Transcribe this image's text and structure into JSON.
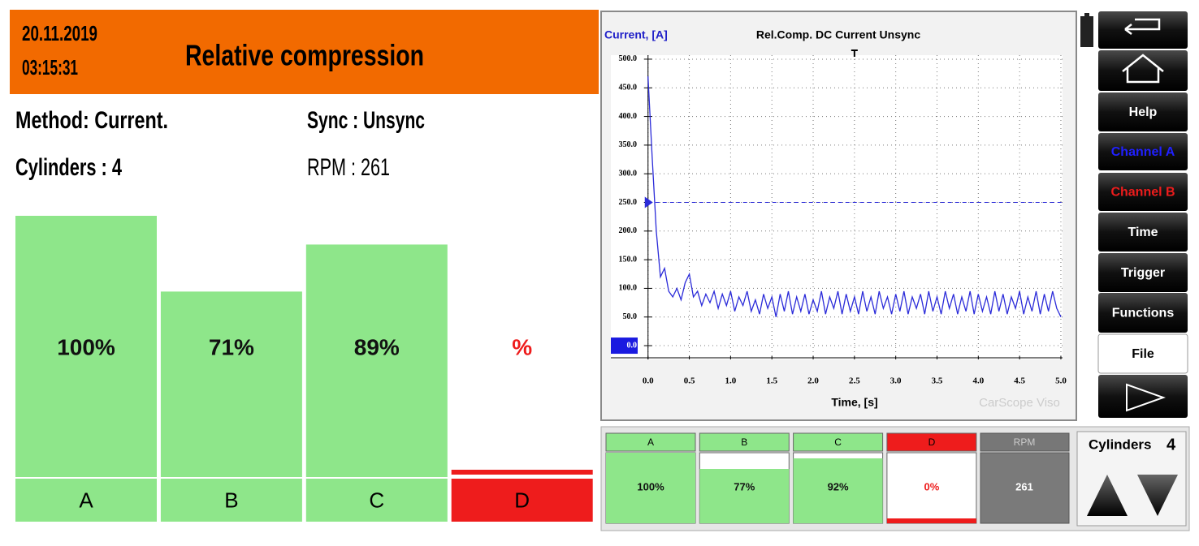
{
  "header": {
    "date": "20.11.2019",
    "time": "03:15:31",
    "title": "Relative compression"
  },
  "info": {
    "method": "Method: Current.",
    "sync": "Sync : Unsync",
    "cylinders": "Cylinders : 4",
    "rpm": "RPM : 261"
  },
  "chart_data": [
    {
      "type": "bar",
      "categories": [
        "A",
        "B",
        "C",
        "D"
      ],
      "values": [
        100,
        71,
        89,
        null
      ],
      "value_labels": [
        "100%",
        "71%",
        "89%",
        "%"
      ],
      "colors": [
        "#8ee68a",
        "#8ee68a",
        "#8ee68a",
        "#ee1c1c"
      ],
      "value_label_colors": [
        "#111111",
        "#111111",
        "#111111",
        "#ee1c1c"
      ],
      "ylim": [
        0,
        100
      ]
    },
    {
      "type": "line",
      "title": "Rel.Comp. DC Current Unsync",
      "y_label": "Current, [A]",
      "x_label": "Time, [s]",
      "watermark": "CarScope Viso",
      "x": [
        0,
        0.05,
        0.1,
        0.15,
        0.2,
        0.25,
        0.3,
        0.35,
        0.4,
        0.45,
        0.5,
        0.55,
        0.6,
        0.65,
        0.7,
        0.75,
        0.8,
        0.85,
        0.9,
        0.95,
        1,
        1.05,
        1.1,
        1.15,
        1.2,
        1.25,
        1.3,
        1.35,
        1.4,
        1.45,
        1.5,
        1.55,
        1.6,
        1.65,
        1.7,
        1.75,
        1.8,
        1.85,
        1.9,
        1.95,
        2,
        2.05,
        2.1,
        2.15,
        2.2,
        2.25,
        2.3,
        2.35,
        2.4,
        2.45,
        2.5,
        2.55,
        2.6,
        2.65,
        2.7,
        2.75,
        2.8,
        2.85,
        2.9,
        2.95,
        3,
        3.05,
        3.1,
        3.15,
        3.2,
        3.25,
        3.3,
        3.35,
        3.4,
        3.45,
        3.5,
        3.55,
        3.6,
        3.65,
        3.7,
        3.75,
        3.8,
        3.85,
        3.9,
        3.95,
        4,
        4.05,
        4.1,
        4.15,
        4.2,
        4.25,
        4.3,
        4.35,
        4.4,
        4.45,
        4.5,
        4.55,
        4.6,
        4.65,
        4.7,
        4.75,
        4.8,
        4.85,
        4.9,
        4.95,
        5
      ],
      "values": [
        470,
        330,
        200,
        120,
        135,
        95,
        85,
        100,
        80,
        110,
        125,
        85,
        95,
        70,
        90,
        75,
        95,
        65,
        90,
        70,
        95,
        60,
        85,
        70,
        95,
        60,
        80,
        55,
        90,
        65,
        85,
        50,
        90,
        60,
        95,
        55,
        85,
        60,
        90,
        55,
        80,
        60,
        95,
        55,
        85,
        65,
        95,
        55,
        90,
        60,
        85,
        55,
        95,
        60,
        85,
        55,
        95,
        65,
        85,
        55,
        90,
        60,
        95,
        55,
        85,
        65,
        90,
        55,
        95,
        60,
        85,
        55,
        95,
        65,
        90,
        55,
        85,
        60,
        95,
        55,
        90,
        60,
        85,
        55,
        95,
        60,
        90,
        55,
        85,
        65,
        95,
        55,
        85,
        60,
        95,
        55,
        90,
        60,
        95,
        65,
        50
      ],
      "color": "#2b2bd9",
      "xlim": [
        -0.45,
        5.02
      ],
      "ylim": [
        -24,
        507
      ],
      "xticks": [
        {
          "value": 0,
          "label": "0.0"
        },
        {
          "value": 0.5,
          "label": "0.5"
        },
        {
          "value": 1,
          "label": "1.0"
        },
        {
          "value": 1.5,
          "label": "1.5"
        },
        {
          "value": 2,
          "label": "2.0"
        },
        {
          "value": 2.5,
          "label": "2.5"
        },
        {
          "value": 3,
          "label": "3.0"
        },
        {
          "value": 3.5,
          "label": "3.5"
        },
        {
          "value": 4,
          "label": "4.0"
        },
        {
          "value": 4.5,
          "label": "4.5"
        },
        {
          "value": 5,
          "label": "5.0"
        }
      ],
      "yticks": [
        {
          "value": 0,
          "label": "0.0"
        },
        {
          "value": 50,
          "label": "50.0"
        },
        {
          "value": 100,
          "label": "100.0"
        },
        {
          "value": 150,
          "label": "150.0"
        },
        {
          "value": 200,
          "label": "200.0"
        },
        {
          "value": 250,
          "label": "250.0"
        },
        {
          "value": 300,
          "label": "300.0"
        },
        {
          "value": 350,
          "label": "350.0"
        },
        {
          "value": 400,
          "label": "400.0"
        },
        {
          "value": 450,
          "label": "450.0"
        },
        {
          "value": 500,
          "label": "500.0"
        }
      ],
      "grid": true,
      "trigger_level": 250,
      "trigger_time": 2.5
    },
    {
      "type": "bar",
      "categories": [
        "A",
        "B",
        "C",
        "D"
      ],
      "values": [
        100,
        77,
        92,
        0
      ],
      "value_labels": [
        "100%",
        "77%",
        "92%",
        "0%"
      ],
      "colors": [
        "#8ee68a",
        "#8ee68a",
        "#8ee68a",
        "#ee1c1c"
      ],
      "value_label_colors": [
        "#111111",
        "#111111",
        "#111111",
        "#ee1c1c"
      ],
      "ylim": [
        0,
        100
      ]
    }
  ],
  "rpm_cell": {
    "label": "RPM",
    "value": "261"
  },
  "cylinders": {
    "label": "Cylinders",
    "value": "4"
  },
  "menu": [
    "Help",
    "Channel A",
    "Channel B",
    "Time",
    "Trigger",
    "Functions",
    "File"
  ]
}
